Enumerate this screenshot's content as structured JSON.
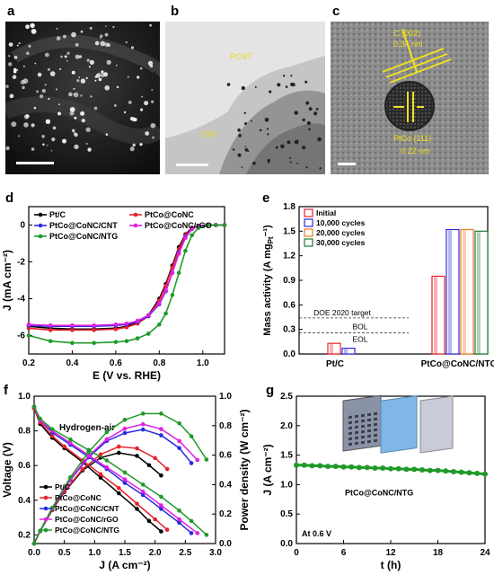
{
  "panel_labels": {
    "a": "a",
    "b": "b",
    "c": "c",
    "d": "d",
    "e": "e",
    "f": "f",
    "g": "g"
  },
  "micrographs": {
    "b": {
      "label_top": "PCNT",
      "label_bottom": "rGO"
    },
    "c": {
      "label_top": "C (002)",
      "value_top": "0.34 nm",
      "label_bottom": "PtCo (111)",
      "value_bottom": "0.22 nm"
    }
  },
  "colors": {
    "Pt/C": "#000000",
    "PtCo@CoNC": "#e8202a",
    "PtCo@CoNC/CNT": "#2a2ae0",
    "PtCo@CoNC/rGO": "#e020e0",
    "PtCo@CoNC/NTG": "#1f9a2a",
    "Initial": "#e8202a",
    "10,000 cycles": "#2a2ae0",
    "20,000 cycles": "#f07820",
    "30,000 cycles": "#1f7a3a",
    "annotation": "#f0e020"
  },
  "chart_data": [
    {
      "id": "d",
      "type": "line",
      "xlabel": "E (V vs. RHE)",
      "ylabel": "J (mA cm⁻²)",
      "xlim": [
        0.2,
        1.1
      ],
      "ylim": [
        -7,
        1
      ],
      "xticks": [
        "0.2",
        "0.4",
        "0.6",
        "0.8",
        "1.0"
      ],
      "yticks": [
        "-6",
        "-4",
        "-2",
        "0"
      ],
      "legend": "top, two columns",
      "series": [
        {
          "name": "Pt/C",
          "x": [
            0.2,
            0.3,
            0.4,
            0.5,
            0.6,
            0.65,
            0.7,
            0.75,
            0.8,
            0.83,
            0.86,
            0.89,
            0.92,
            0.95,
            0.98,
            1.02,
            1.06,
            1.1
          ],
          "y": [
            -5.5,
            -5.6,
            -5.65,
            -5.65,
            -5.6,
            -5.5,
            -5.3,
            -4.9,
            -4.0,
            -3.2,
            -2.2,
            -1.2,
            -0.5,
            -0.15,
            -0.05,
            0,
            0,
            0
          ]
        },
        {
          "name": "PtCo@CoNC",
          "x": [
            0.2,
            0.3,
            0.4,
            0.5,
            0.6,
            0.65,
            0.7,
            0.75,
            0.8,
            0.83,
            0.86,
            0.89,
            0.92,
            0.95,
            0.98,
            1.02,
            1.06,
            1.1
          ],
          "y": [
            -5.6,
            -5.7,
            -5.7,
            -5.7,
            -5.65,
            -5.55,
            -5.35,
            -4.95,
            -4.1,
            -3.3,
            -2.3,
            -1.3,
            -0.55,
            -0.18,
            -0.05,
            0,
            0,
            0
          ]
        },
        {
          "name": "PtCo@CoNC/CNT",
          "x": [
            0.2,
            0.3,
            0.4,
            0.5,
            0.6,
            0.65,
            0.7,
            0.75,
            0.8,
            0.83,
            0.86,
            0.89,
            0.92,
            0.95,
            0.98,
            1.02,
            1.06,
            1.1
          ],
          "y": [
            -5.45,
            -5.5,
            -5.5,
            -5.5,
            -5.45,
            -5.4,
            -5.25,
            -4.95,
            -4.3,
            -3.6,
            -2.6,
            -1.5,
            -0.65,
            -0.2,
            -0.05,
            0,
            0,
            0
          ]
        },
        {
          "name": "PtCo@CoNC/rGO",
          "x": [
            0.2,
            0.3,
            0.4,
            0.5,
            0.6,
            0.65,
            0.7,
            0.75,
            0.8,
            0.83,
            0.86,
            0.89,
            0.92,
            0.95,
            0.98,
            1.02,
            1.06,
            1.1
          ],
          "y": [
            -5.4,
            -5.45,
            -5.45,
            -5.45,
            -5.4,
            -5.35,
            -5.2,
            -4.9,
            -4.25,
            -3.55,
            -2.6,
            -1.55,
            -0.7,
            -0.22,
            -0.06,
            0,
            0,
            0
          ]
        },
        {
          "name": "PtCo@CoNC/NTG",
          "x": [
            0.2,
            0.3,
            0.4,
            0.5,
            0.6,
            0.65,
            0.7,
            0.75,
            0.8,
            0.83,
            0.86,
            0.89,
            0.92,
            0.95,
            0.98,
            1.02,
            1.06,
            1.1
          ],
          "y": [
            -6.0,
            -6.3,
            -6.4,
            -6.4,
            -6.35,
            -6.3,
            -6.15,
            -5.9,
            -5.4,
            -4.8,
            -3.8,
            -2.6,
            -1.4,
            -0.55,
            -0.15,
            -0.02,
            0,
            0
          ]
        }
      ]
    },
    {
      "id": "e",
      "type": "bar",
      "ylabel": "Mass activity (A mg",
      "ylabel_sub": "Pt",
      "ylabel_end": "⁻¹)",
      "ylim": [
        0,
        1.8
      ],
      "yticks": [
        "0.0",
        "0.3",
        "0.6",
        "0.9",
        "1.2",
        "1.5",
        "1.8"
      ],
      "categories": [
        "Pt/C",
        "PtCo@CoNC/NTG"
      ],
      "legend": "top-left",
      "series": [
        {
          "name": "Initial",
          "values": [
            0.13,
            0.95
          ]
        },
        {
          "name": "10,000 cycles",
          "values": [
            0.07,
            1.52
          ]
        },
        {
          "name": "20,000 cycles",
          "values": [
            null,
            1.52
          ]
        },
        {
          "name": "30,000 cycles",
          "values": [
            null,
            1.5
          ]
        }
      ],
      "reference_lines": [
        {
          "label": "DOE 2020 target",
          "value": 0.44
        },
        {
          "label": "BOL",
          "value": 0.26
        },
        {
          "label": "EOL",
          "value": 0.26
        }
      ]
    },
    {
      "id": "f",
      "type": "line",
      "annotation": "Hydrogen-air",
      "xlabel": "J  (A cm⁻²)",
      "ylabel": "Voltage (V)",
      "y2label": "Power density (W cm⁻²)",
      "xlim": [
        0,
        3.0
      ],
      "ylim": [
        0.15,
        1.0
      ],
      "y2lim": [
        0,
        1.0
      ],
      "xticks": [
        "0.0",
        "0.5",
        "1.0",
        "1.5",
        "2.0",
        "2.5",
        "3.0"
      ],
      "yticks": [
        "0.2",
        "0.4",
        "0.6",
        "0.8",
        "1.0"
      ],
      "y2ticks": [
        "0.0",
        "0.2",
        "0.4",
        "0.6",
        "0.8",
        "1.0"
      ],
      "legend": "bottom-left",
      "series": [
        {
          "name": "Pt/C",
          "x": [
            0,
            0.1,
            0.3,
            0.5,
            0.8,
            1.1,
            1.4,
            1.7,
            1.9,
            2.1
          ],
          "voltage": [
            0.93,
            0.84,
            0.76,
            0.7,
            0.62,
            0.53,
            0.44,
            0.35,
            0.28,
            0.22
          ],
          "power": [
            0,
            0.084,
            0.228,
            0.35,
            0.496,
            0.583,
            0.616,
            0.595,
            0.532,
            0.462
          ]
        },
        {
          "name": "PtCo@CoNC",
          "x": [
            0,
            0.1,
            0.3,
            0.5,
            0.8,
            1.1,
            1.4,
            1.7,
            2.0,
            2.2
          ],
          "voltage": [
            0.93,
            0.85,
            0.77,
            0.71,
            0.63,
            0.55,
            0.47,
            0.38,
            0.29,
            0.23
          ],
          "power": [
            0,
            0.085,
            0.231,
            0.355,
            0.504,
            0.605,
            0.658,
            0.646,
            0.58,
            0.506
          ]
        },
        {
          "name": "PtCo@CoNC/CNT",
          "x": [
            0,
            0.1,
            0.3,
            0.6,
            0.9,
            1.2,
            1.5,
            1.8,
            2.1,
            2.4,
            2.6
          ],
          "voltage": [
            0.94,
            0.86,
            0.79,
            0.72,
            0.65,
            0.58,
            0.5,
            0.43,
            0.35,
            0.27,
            0.21
          ],
          "power": [
            0,
            0.086,
            0.237,
            0.432,
            0.585,
            0.696,
            0.75,
            0.774,
            0.735,
            0.648,
            0.546
          ]
        },
        {
          "name": "PtCo@CoNC/rGO",
          "x": [
            0,
            0.1,
            0.3,
            0.6,
            0.9,
            1.2,
            1.5,
            1.8,
            2.1,
            2.4,
            2.7
          ],
          "voltage": [
            0.94,
            0.86,
            0.8,
            0.73,
            0.66,
            0.59,
            0.52,
            0.45,
            0.37,
            0.29,
            0.21
          ],
          "power": [
            0,
            0.086,
            0.24,
            0.438,
            0.594,
            0.708,
            0.78,
            0.81,
            0.777,
            0.696,
            0.567
          ]
        },
        {
          "name": "PtCo@CoNC/NTG",
          "x": [
            0,
            0.1,
            0.3,
            0.6,
            0.9,
            1.2,
            1.5,
            1.8,
            2.1,
            2.4,
            2.6,
            2.85
          ],
          "voltage": [
            0.94,
            0.87,
            0.81,
            0.75,
            0.69,
            0.63,
            0.56,
            0.49,
            0.42,
            0.34,
            0.28,
            0.2
          ],
          "power": [
            0,
            0.087,
            0.243,
            0.45,
            0.621,
            0.756,
            0.84,
            0.882,
            0.882,
            0.816,
            0.728,
            0.57
          ]
        }
      ]
    },
    {
      "id": "g",
      "type": "line",
      "xlabel": "t (h)",
      "ylabel": "J (A cm⁻²)",
      "xlim": [
        0,
        24
      ],
      "ylim": [
        0,
        2.5
      ],
      "xticks": [
        "0",
        "6",
        "12",
        "18",
        "24"
      ],
      "yticks": [
        "0.0",
        "0.5",
        "1.0",
        "1.5",
        "2.0",
        "2.5"
      ],
      "annotation": "At 0.6 V",
      "series": [
        {
          "name": "PtCo@CoNC/NTG",
          "x": [
            0,
            1,
            2,
            3,
            4,
            5,
            6,
            7,
            8,
            9,
            10,
            11,
            12,
            13,
            14,
            15,
            16,
            17,
            18,
            19,
            20,
            21,
            22,
            23,
            24
          ],
          "y": [
            1.33,
            1.33,
            1.32,
            1.32,
            1.31,
            1.31,
            1.3,
            1.3,
            1.29,
            1.29,
            1.28,
            1.28,
            1.27,
            1.27,
            1.26,
            1.26,
            1.25,
            1.24,
            1.24,
            1.23,
            1.22,
            1.21,
            1.2,
            1.19,
            1.18
          ]
        }
      ]
    }
  ]
}
